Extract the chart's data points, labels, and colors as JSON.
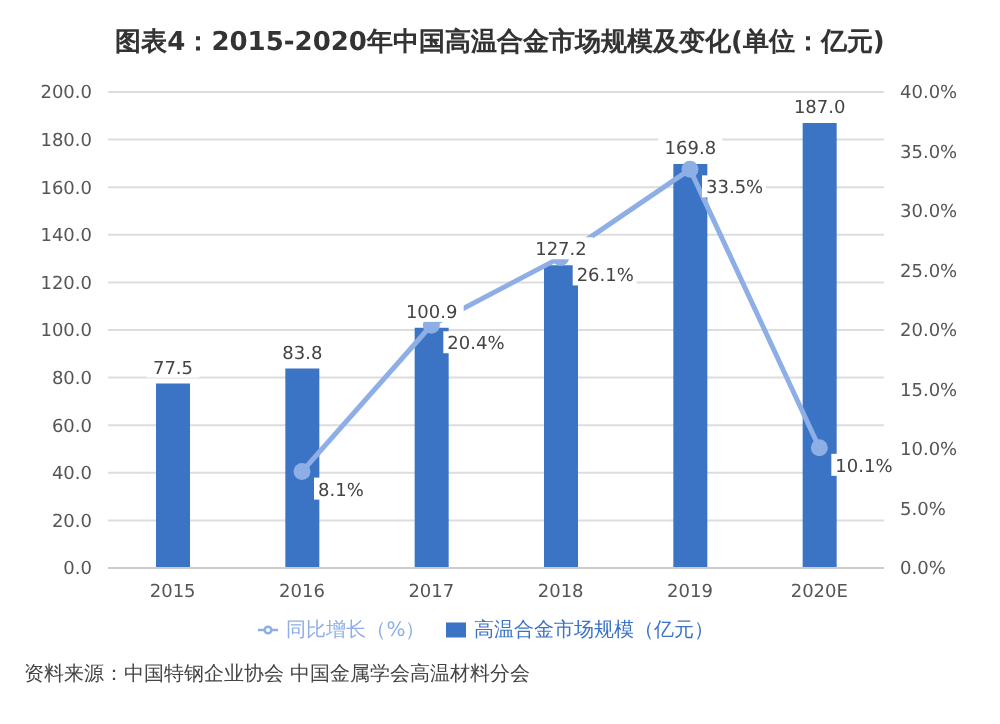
{
  "chart_data": {
    "type": "bar",
    "title": "图表4：2015-2020年中国高温合金市场规模及变化(单位：亿元)",
    "categories": [
      "2015",
      "2016",
      "2017",
      "2018",
      "2019",
      "2020E"
    ],
    "series": [
      {
        "name": "高温合金市场规模（亿元）",
        "color": "#3b73c5",
        "values": [
          77.5,
          83.8,
          100.9,
          127.2,
          169.8,
          187.0
        ],
        "value_labels": [
          "77.5",
          "83.8",
          "100.9",
          "127.2",
          "169.8",
          "187.0"
        ]
      },
      {
        "name": "同比增长（%）",
        "type": "line",
        "axis": "y2",
        "color": "#8eaee6",
        "values": [
          null,
          8.1,
          20.4,
          26.1,
          33.5,
          10.1
        ],
        "value_labels": [
          null,
          "8.1%",
          "20.4%",
          "26.1%",
          "33.5%",
          "10.1%"
        ]
      }
    ],
    "ylim": [
      0,
      200
    ],
    "yticks": [
      {
        "value": 0,
        "label": "0.0"
      },
      {
        "value": 20,
        "label": "20.0"
      },
      {
        "value": 40,
        "label": "40.0"
      },
      {
        "value": 60,
        "label": "60.0"
      },
      {
        "value": 80,
        "label": "80.0"
      },
      {
        "value": 100,
        "label": "100.0"
      },
      {
        "value": 120,
        "label": "120.0"
      },
      {
        "value": 140,
        "label": "140.0"
      },
      {
        "value": 160,
        "label": "160.0"
      },
      {
        "value": 180,
        "label": "180.0"
      },
      {
        "value": 200,
        "label": "200.0"
      }
    ],
    "y2lim": [
      0,
      40
    ],
    "y2ticks": [
      {
        "value": 0,
        "label": "0.0%"
      },
      {
        "value": 5,
        "label": "5.0%"
      },
      {
        "value": 10,
        "label": "10.0%"
      },
      {
        "value": 15,
        "label": "15.0%"
      },
      {
        "value": 20,
        "label": "20.0%"
      },
      {
        "value": 25,
        "label": "25.0%"
      },
      {
        "value": 30,
        "label": "30.0%"
      },
      {
        "value": 35,
        "label": "35.0%"
      },
      {
        "value": 40,
        "label": "40.0%"
      }
    ],
    "grid": "y",
    "legend": "bottom",
    "marker": "circle",
    "line_style": "solid",
    "annotations": [
      "资料来源：中国特钢企业协会 中国金属学会高温材料分会"
    ]
  }
}
